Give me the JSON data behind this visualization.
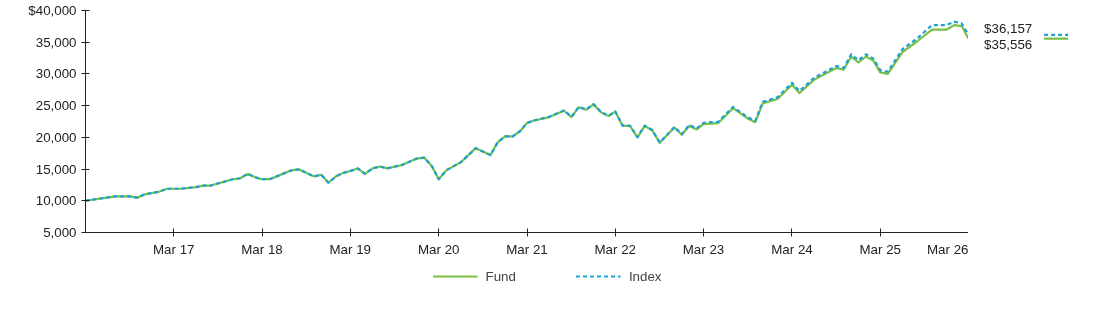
{
  "chart_data": {
    "type": "line",
    "x": [
      "2016-03",
      "2016-07",
      "2016-09",
      "2016-10",
      "2016-11",
      "2017-01",
      "2017-02",
      "2017-04",
      "2017-06",
      "2017-07",
      "2017-08",
      "2017-11",
      "2017-12",
      "2018-01",
      "2018-02",
      "2018-03",
      "2018-04",
      "2018-05",
      "2018-07",
      "2018-08",
      "2018-10",
      "2018-11",
      "2018-12",
      "2019-01",
      "2019-02",
      "2019-03",
      "2019-04",
      "2019-05",
      "2019-06",
      "2019-07",
      "2019-08",
      "2019-10",
      "2019-12",
      "2020-01",
      "2020-02",
      "2020-03",
      "2020-04",
      "2020-06",
      "2020-08",
      "2020-10",
      "2020-11",
      "2020-12",
      "2021-01",
      "2021-02",
      "2021-03",
      "2021-04",
      "2021-06",
      "2021-08",
      "2021-09",
      "2021-10",
      "2021-11",
      "2021-12",
      "2022-01",
      "2022-02",
      "2022-03",
      "2022-04",
      "2022-05",
      "2022-06",
      "2022-07",
      "2022-08",
      "2022-09",
      "2022-11",
      "2022-12",
      "2023-01",
      "2023-02",
      "2023-03",
      "2023-05",
      "2023-07",
      "2023-09",
      "2023-10",
      "2023-11",
      "2024-01",
      "2024-03",
      "2024-04",
      "2024-06",
      "2024-09",
      "2024-10",
      "2024-11",
      "2024-12",
      "2025-01",
      "2025-02",
      "2025-03",
      "2025-04",
      "2025-06",
      "2025-08",
      "2025-10",
      "2025-12",
      "2026-01",
      "2026-02",
      "2026-03"
    ],
    "series": [
      {
        "name": "Fund",
        "color": "#7ac143",
        "line_style": "solid",
        "values": [
          10000,
          10700,
          10700,
          10500,
          11000,
          11450,
          11900,
          11900,
          12150,
          12400,
          12400,
          13400,
          13550,
          14250,
          13700,
          13400,
          13400,
          13850,
          14800,
          14950,
          13850,
          14100,
          12850,
          13850,
          14400,
          14700,
          15100,
          14250,
          15100,
          15400,
          15100,
          15650,
          16650,
          16800,
          15500,
          13400,
          14800,
          16100,
          18300,
          17200,
          19300,
          20150,
          20150,
          21000,
          22250,
          22650,
          23200,
          24200,
          23200,
          24750,
          24350,
          25200,
          23950,
          23350,
          24050,
          21800,
          21800,
          20000,
          21800,
          21100,
          19150,
          21550,
          20400,
          21800,
          21250,
          22100,
          22250,
          24600,
          22950,
          22400,
          25350,
          26050,
          28300,
          27000,
          29100,
          30950,
          30650,
          32750,
          31800,
          32750,
          32050,
          30250,
          30000,
          33450,
          35150,
          37000,
          37000,
          37700,
          37550,
          35556
        ]
      },
      {
        "name": "Index",
        "color": "#1ba1d9",
        "line_style": "dashed",
        "values": [
          10000,
          10700,
          10700,
          10500,
          11000,
          11450,
          11900,
          11900,
          12150,
          12400,
          12400,
          13400,
          13550,
          14250,
          13700,
          13400,
          13400,
          13850,
          14800,
          14950,
          13850,
          14100,
          12850,
          13850,
          14400,
          14700,
          15100,
          14250,
          15100,
          15400,
          15100,
          15650,
          16650,
          16800,
          15500,
          13400,
          14800,
          16100,
          18300,
          17200,
          19300,
          20150,
          20150,
          21000,
          22300,
          22700,
          23250,
          24250,
          23250,
          24800,
          24400,
          25250,
          24000,
          23400,
          24100,
          21850,
          21850,
          20050,
          21850,
          21150,
          19200,
          21650,
          20500,
          21950,
          21400,
          22300,
          22450,
          24800,
          23150,
          22600,
          25600,
          26300,
          28600,
          27300,
          29400,
          31250,
          30950,
          33100,
          32150,
          33100,
          32400,
          30600,
          30350,
          33900,
          35600,
          37700,
          37700,
          38250,
          37950,
          36157
        ]
      }
    ],
    "annotations": [
      {
        "text": "$36,157",
        "x": "2026-03",
        "y": 36157
      },
      {
        "text": "$35,556",
        "x": "2026-03",
        "y": 35556
      }
    ],
    "xlim": [
      "2016-03",
      "2026-03"
    ],
    "xticks": [
      {
        "value": "2017-03",
        "label": "Mar 17"
      },
      {
        "value": "2018-03",
        "label": "Mar 18"
      },
      {
        "value": "2019-03",
        "label": "Mar 19"
      },
      {
        "value": "2020-03",
        "label": "Mar 20"
      },
      {
        "value": "2021-03",
        "label": "Mar 21"
      },
      {
        "value": "2022-03",
        "label": "Mar 22"
      },
      {
        "value": "2023-03",
        "label": "Mar 23"
      },
      {
        "value": "2024-03",
        "label": "Mar 24"
      },
      {
        "value": "2025-03",
        "label": "Mar 25"
      },
      {
        "value": "2026-03",
        "label": "Mar 26"
      }
    ],
    "ylim": [
      5000,
      40000
    ],
    "yticks": [
      {
        "value": 5000,
        "label": "5,000"
      },
      {
        "value": 10000,
        "label": "10,000"
      },
      {
        "value": 15000,
        "label": "15,000"
      },
      {
        "value": 20000,
        "label": "20,000"
      },
      {
        "value": 25000,
        "label": "25,000"
      },
      {
        "value": 30000,
        "label": "30,000"
      },
      {
        "value": 35000,
        "label": "35,000"
      },
      {
        "value": 40000,
        "label": "$40,000"
      }
    ],
    "grid": false,
    "legend": "bottom"
  }
}
